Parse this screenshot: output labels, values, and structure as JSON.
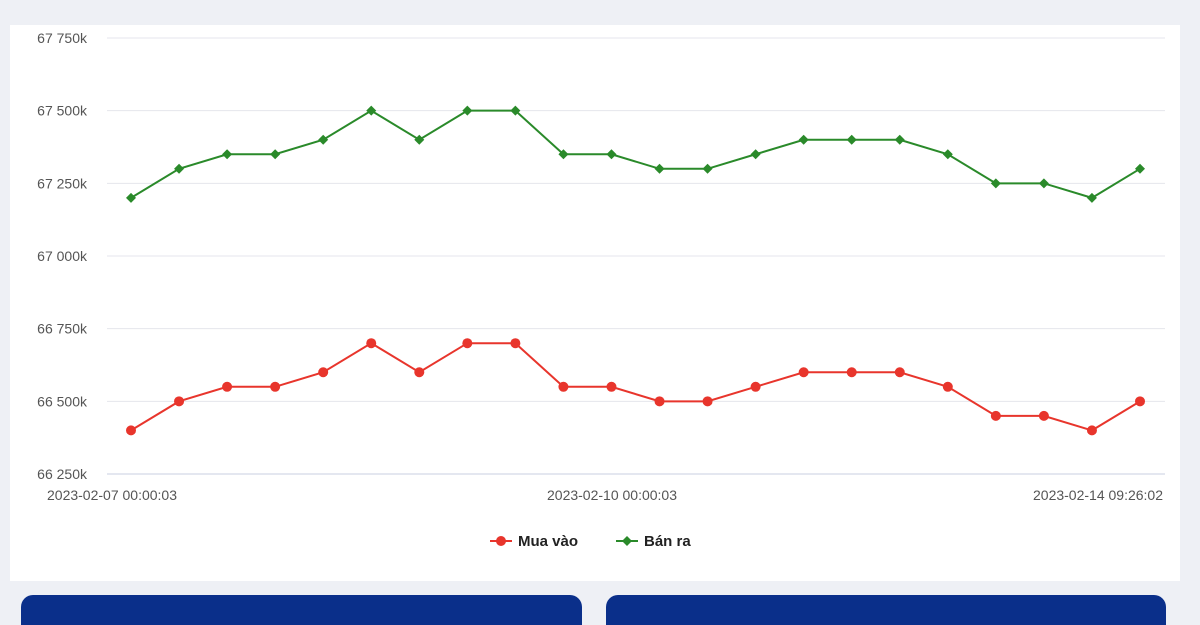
{
  "chart_data": {
    "type": "line",
    "x_tick_labels": [
      "2023-02-07 00:00:03",
      "2023-02-10 00:00:03",
      "2023-02-14 09:26:02"
    ],
    "y_ticks": [
      66250,
      66500,
      66750,
      67000,
      67250,
      67500,
      67750
    ],
    "y_tick_labels": [
      "66 250k",
      "66 500k",
      "66 750k",
      "67 000k",
      "67 250k",
      "67 500k",
      "67 750k"
    ],
    "ylim": [
      66250,
      67750
    ],
    "grid": true,
    "legend_position": "bottom",
    "series": [
      {
        "name": "Mua vào",
        "color": "#e8352c",
        "marker": "circle",
        "values": [
          66400,
          66500,
          66550,
          66550,
          66600,
          66700,
          66600,
          66700,
          66700,
          66550,
          66550,
          66500,
          66500,
          66550,
          66600,
          66600,
          66600,
          66550,
          66450,
          66450,
          66400,
          66500
        ]
      },
      {
        "name": "Bán ra",
        "color": "#2a8a2a",
        "marker": "diamond",
        "values": [
          67200,
          67300,
          67350,
          67350,
          67400,
          67500,
          67400,
          67500,
          67500,
          67350,
          67350,
          67300,
          67300,
          67350,
          67400,
          67400,
          67400,
          67350,
          67250,
          67250,
          67200,
          67300
        ]
      }
    ]
  }
}
